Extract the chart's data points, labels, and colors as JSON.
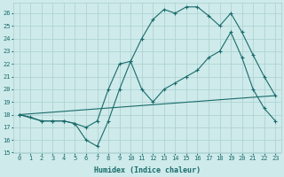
{
  "xlabel": "Humidex (Indice chaleur)",
  "bg_color": "#ceeaea",
  "line_color": "#1a6b6b",
  "grid_color": "#aacfcf",
  "xlim": [
    -0.5,
    23.5
  ],
  "ylim": [
    15,
    26.8
  ],
  "yticks": [
    15,
    16,
    17,
    18,
    19,
    20,
    21,
    22,
    23,
    24,
    25,
    26
  ],
  "xticks": [
    0,
    1,
    2,
    3,
    4,
    5,
    6,
    7,
    8,
    9,
    10,
    11,
    12,
    13,
    14,
    15,
    16,
    17,
    18,
    19,
    20,
    21,
    22,
    23
  ],
  "line1_x": [
    0,
    1,
    2,
    3,
    4,
    5,
    6,
    7,
    8,
    9,
    10,
    11,
    12,
    13,
    14,
    15,
    16,
    17,
    18,
    19,
    20,
    21,
    22,
    23
  ],
  "line1_y": [
    18,
    17.8,
    17.5,
    17.5,
    17.5,
    17.3,
    16.0,
    15.5,
    17.5,
    20.0,
    22.2,
    24.0,
    25.5,
    26.3,
    26.0,
    26.5,
    26.5,
    25.8,
    25.0,
    26.0,
    24.5,
    22.7,
    21.0,
    19.5
  ],
  "line2_x": [
    0,
    2,
    3,
    4,
    5,
    6,
    7,
    8,
    9,
    10,
    11,
    12,
    13,
    14,
    15,
    16,
    17,
    18,
    19,
    20,
    21,
    22,
    23
  ],
  "line2_y": [
    18,
    17.5,
    17.5,
    17.5,
    17.3,
    17.0,
    17.5,
    20.0,
    22.0,
    22.2,
    20.0,
    19.0,
    20.0,
    20.5,
    21.0,
    21.5,
    22.5,
    23.0,
    24.5,
    22.5,
    20.0,
    18.5,
    17.5
  ],
  "line3_x": [
    0,
    23
  ],
  "line3_y": [
    18,
    19.5
  ]
}
